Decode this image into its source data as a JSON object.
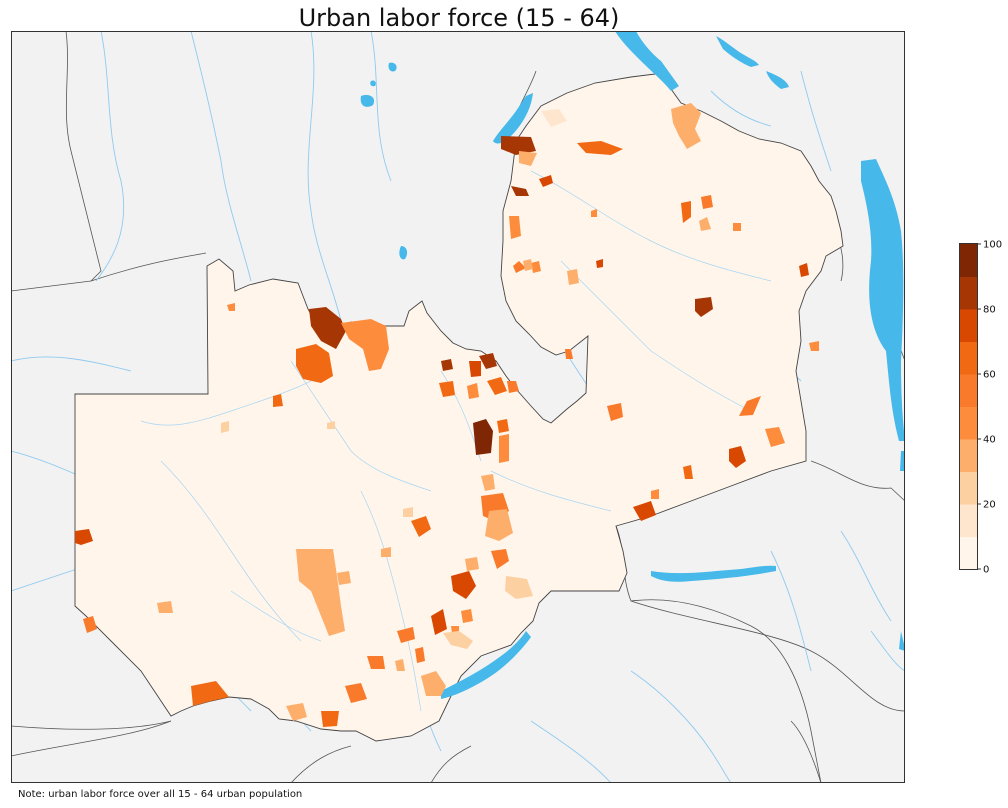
{
  "title": "Urban labor force (15 - 64)",
  "note": "Note: urban labor force over all 15 - 64 urban population",
  "colors": {
    "background_land": "#f2f2f2",
    "country_fill": "#fff5eb",
    "water": "#46b8ea",
    "river": "#8fcaf0",
    "border": "#333333",
    "frame": "#333333"
  },
  "legend": {
    "min": 0,
    "max": 100,
    "ticks": [
      0,
      20,
      40,
      60,
      80,
      100
    ],
    "tick_labels": [
      "0",
      "20",
      "40",
      "60",
      "80",
      "100"
    ],
    "bins": [
      {
        "from": 0,
        "to": 10,
        "color": "#fff5eb"
      },
      {
        "from": 10,
        "to": 20,
        "color": "#fee6ce"
      },
      {
        "from": 20,
        "to": 30,
        "color": "#fdd0a2"
      },
      {
        "from": 30,
        "to": 40,
        "color": "#fdae6b"
      },
      {
        "from": 40,
        "to": 50,
        "color": "#fd8d3c"
      },
      {
        "from": 50,
        "to": 60,
        "color": "#f87a2a"
      },
      {
        "from": 60,
        "to": 70,
        "color": "#f16913"
      },
      {
        "from": 70,
        "to": 80,
        "color": "#d94801"
      },
      {
        "from": 80,
        "to": 90,
        "color": "#a63603"
      },
      {
        "from": 90,
        "to": 100,
        "color": "#7f2704"
      }
    ]
  }
}
